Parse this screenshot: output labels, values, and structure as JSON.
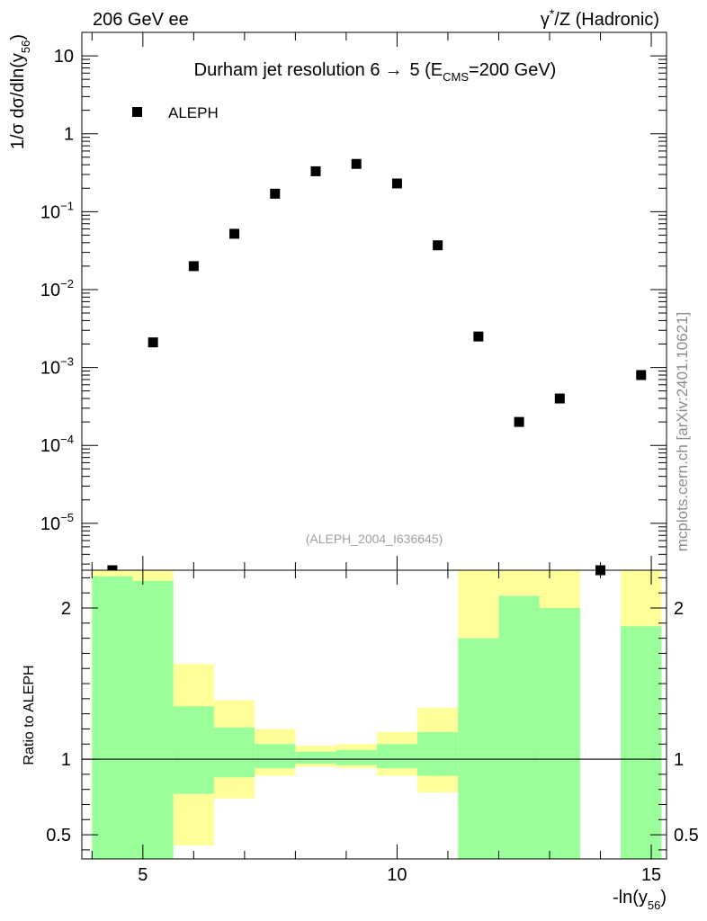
{
  "header": {
    "left": "206 GeV ee",
    "right_gamma": "γ",
    "right_star": "*",
    "right_rest": "/Z (Hadronic)"
  },
  "watermark": "mcplots.cern.ch [arXiv:2401.10621]",
  "reference": "(ALEPH_2004_I636645)",
  "colors": {
    "band_outer": "#ffff9a",
    "band_inner": "#9aff9a",
    "marker": "#000000"
  },
  "chart_data": [
    {
      "type": "scatter",
      "panel": "main",
      "title_main": "Durham jet resolution 6",
      "title_arrow": "→",
      "title_five": "5 (E",
      "title_sub": "CMS",
      "title_tail": "=200 GeV)",
      "ylabel_main": "1/σ  dσ/dln(y",
      "ylabel_sub": "56",
      "ylabel_close": ")",
      "yscale": "log",
      "ylim": [
        2.5e-06,
        20
      ],
      "xlim": [
        3.8,
        15.3
      ],
      "legend": {
        "label": "ALEPH",
        "placement": "top-left"
      },
      "y_ticks": [
        {
          "value": 10,
          "label": "10"
        },
        {
          "value": 1,
          "label": "1"
        },
        {
          "value": 0.1,
          "base": "10",
          "exp": "−1"
        },
        {
          "value": 0.01,
          "base": "10",
          "exp": "−2"
        },
        {
          "value": 0.001,
          "base": "10",
          "exp": "−3"
        },
        {
          "value": 0.0001,
          "base": "10",
          "exp": "−4"
        },
        {
          "value": 1e-05,
          "base": "10",
          "exp": "−5"
        }
      ],
      "series": [
        {
          "name": "ALEPH",
          "x": [
            4.4,
            5.2,
            6.0,
            6.8,
            7.6,
            8.4,
            9.2,
            10.0,
            10.8,
            11.6,
            12.4,
            13.2,
            14.0,
            14.8
          ],
          "y": [
            2.5e-06,
            0.0021,
            0.02,
            0.052,
            0.17,
            0.33,
            0.41,
            0.23,
            0.037,
            0.0025,
            0.0002,
            0.0004,
            2.5e-06,
            0.0008
          ]
        }
      ]
    },
    {
      "type": "area",
      "panel": "ratio",
      "ylabel": "Ratio to ALEPH",
      "xlabel_main": "-ln(y",
      "xlabel_sub": "56",
      "xlabel_close": ")",
      "ylim": [
        0.34,
        2.25
      ],
      "xlim": [
        3.8,
        15.3
      ],
      "reference_line": 1,
      "x_ticks": [
        {
          "value": 5,
          "label": "5"
        },
        {
          "value": 10,
          "label": "10"
        },
        {
          "value": 15,
          "label": "15"
        }
      ],
      "y_ticks": [
        {
          "value": 0.5,
          "label": "0.5"
        },
        {
          "value": 1,
          "label": "1"
        },
        {
          "value": 2,
          "label": "2"
        }
      ],
      "bins": [
        {
          "lo": 4.0,
          "hi": 4.8,
          "inner": [
            0.34,
            2.21
          ],
          "outer": [
            0.34,
            2.25
          ]
        },
        {
          "lo": 4.8,
          "hi": 5.6,
          "inner": [
            0.34,
            2.18
          ],
          "outer": [
            0.34,
            2.25
          ]
        },
        {
          "lo": 5.6,
          "hi": 6.4,
          "inner": [
            0.77,
            1.35
          ],
          "outer": [
            0.43,
            1.63
          ]
        },
        {
          "lo": 6.4,
          "hi": 7.2,
          "inner": [
            0.88,
            1.21
          ],
          "outer": [
            0.74,
            1.39
          ]
        },
        {
          "lo": 7.2,
          "hi": 8.0,
          "inner": [
            0.94,
            1.1
          ],
          "outer": [
            0.89,
            1.2
          ]
        },
        {
          "lo": 8.0,
          "hi": 8.8,
          "inner": [
            0.97,
            1.05
          ],
          "outer": [
            0.95,
            1.09
          ]
        },
        {
          "lo": 8.8,
          "hi": 9.6,
          "inner": [
            0.96,
            1.06
          ],
          "outer": [
            0.94,
            1.1
          ]
        },
        {
          "lo": 9.6,
          "hi": 10.4,
          "inner": [
            0.94,
            1.1
          ],
          "outer": [
            0.89,
            1.18
          ]
        },
        {
          "lo": 10.4,
          "hi": 11.2,
          "inner": [
            0.89,
            1.18
          ],
          "outer": [
            0.78,
            1.34
          ]
        },
        {
          "lo": 11.2,
          "hi": 12.0,
          "inner": [
            0.34,
            1.8
          ],
          "outer": [
            0.34,
            2.25
          ]
        },
        {
          "lo": 12.0,
          "hi": 12.8,
          "inner": [
            0.34,
            2.08
          ],
          "outer": [
            0.34,
            2.25
          ]
        },
        {
          "lo": 12.8,
          "hi": 13.6,
          "inner": [
            0.34,
            2.0
          ],
          "outer": [
            0.34,
            2.25
          ]
        },
        {
          "lo": 14.4,
          "hi": 15.2,
          "inner": [
            0.34,
            1.88
          ],
          "outer": [
            0.34,
            2.25
          ]
        }
      ]
    }
  ]
}
